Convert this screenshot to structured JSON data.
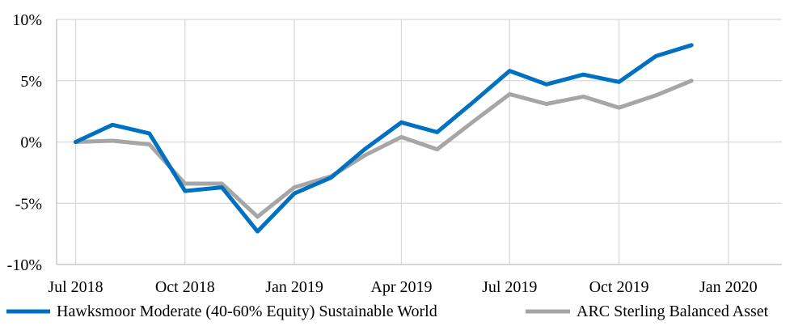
{
  "chart_data": {
    "type": "line",
    "title": "",
    "xlabel": "",
    "ylabel": "",
    "x": [
      "2018-07-01",
      "2018-08-01",
      "2018-09-01",
      "2018-10-01",
      "2018-11-01",
      "2018-12-01",
      "2019-01-01",
      "2019-02-01",
      "2019-03-01",
      "2019-04-01",
      "2019-05-01",
      "2019-06-01",
      "2019-07-01",
      "2019-08-01",
      "2019-09-01",
      "2019-10-01",
      "2019-11-01",
      "2019-12-01"
    ],
    "series": [
      {
        "name": "Hawksmoor Moderate (40-60% Equity) Sustainable World",
        "color": "#0070C0",
        "values": [
          0.0,
          1.4,
          0.7,
          -4.0,
          -3.7,
          -7.3,
          -4.2,
          -2.9,
          -0.6,
          1.6,
          0.8,
          3.3,
          5.8,
          4.7,
          5.5,
          4.9,
          7.0,
          7.9
        ]
      },
      {
        "name": "ARC Sterling Balanced Asset",
        "color": "#A6A6A6",
        "values": [
          0.0,
          0.1,
          -0.2,
          -3.4,
          -3.4,
          -6.1,
          -3.7,
          -2.8,
          -1.1,
          0.4,
          -0.6,
          1.7,
          3.9,
          3.1,
          3.7,
          2.8,
          3.8,
          5.0
        ]
      }
    ],
    "ylim": [
      -10,
      10
    ],
    "y_ticks": [
      10,
      5,
      0,
      -5,
      -10
    ],
    "y_tick_labels": [
      "10%",
      "5%",
      "0%",
      "-5%",
      "-10%"
    ],
    "x_ticks": [
      "2018-07-01",
      "2018-10-01",
      "2019-01-01",
      "2019-04-01",
      "2019-07-01",
      "2019-10-01",
      "2020-01-01"
    ],
    "x_tick_labels": [
      "Jul 2018",
      "Oct 2018",
      "Jan 2019",
      "Apr 2019",
      "Jul 2019",
      "Oct 2019",
      "Jan 2020"
    ],
    "x_range": [
      "2018-06-15",
      "2020-02-15"
    ],
    "grid": true,
    "legend_position": "bottom"
  }
}
